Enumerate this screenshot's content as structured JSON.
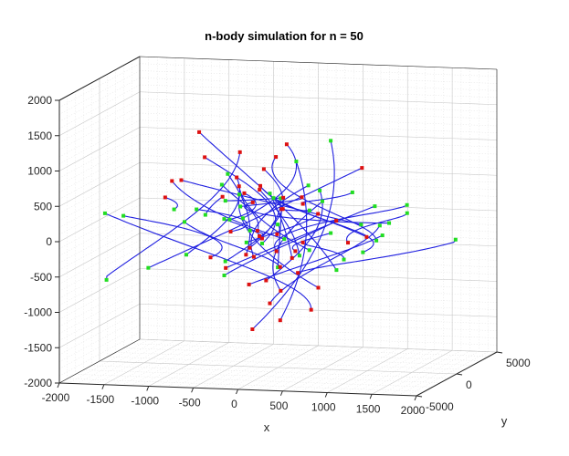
{
  "chart_data": {
    "type": "line",
    "title": "n-body simulation for n = 50",
    "xlabel": "x",
    "ylabel": "y",
    "zlabel": "",
    "xlim": [
      -2000,
      2000
    ],
    "ylim": [
      -5000,
      5000
    ],
    "zlim": [
      -2000,
      2000
    ],
    "x_ticks": [
      "-2000",
      "-1500",
      "-1000",
      "-500",
      "0",
      "500",
      "1000",
      "1500",
      "2000"
    ],
    "y_ticks": [
      "-5000",
      "0",
      "5000"
    ],
    "z_ticks": [
      "-2000",
      "-1500",
      "-1000",
      "-500",
      "0",
      "500",
      "1000",
      "1500",
      "2000"
    ],
    "grid": "on",
    "view": "3d",
    "n_bodies": 50,
    "colors": {
      "trajectory": "#1f1fe0",
      "start_marker": "#22dd22",
      "end_marker": "#dd1111",
      "axes": "#262626",
      "grid": "#c8c8c8"
    }
  }
}
